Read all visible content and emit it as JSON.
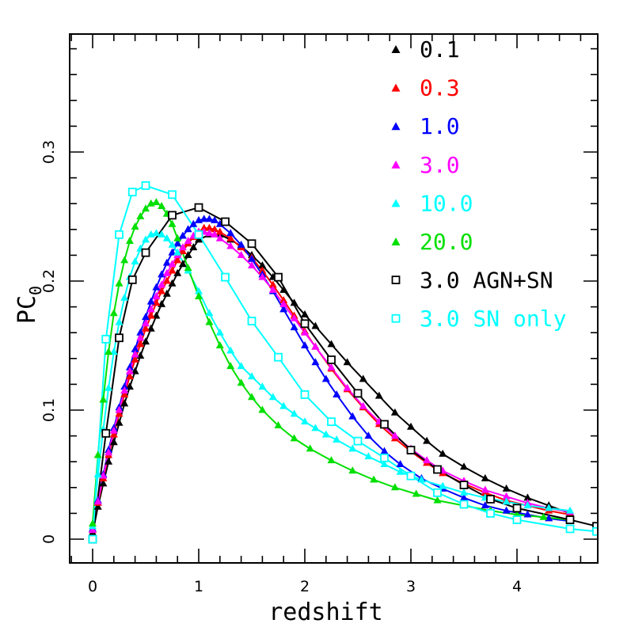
{
  "chart_data": {
    "type": "line",
    "xlabel": "redshift",
    "ylabel": "PC",
    "ylabel_sub": "0",
    "xlim": [
      -0.2,
      4.75
    ],
    "ylim": [
      -0.018,
      0.39
    ],
    "x_ticks": [
      0,
      1,
      2,
      3,
      4
    ],
    "x_tick_labels": [
      "0",
      "1",
      "2",
      "3",
      "4"
    ],
    "y_ticks": [
      0,
      0.1,
      0.2,
      0.3
    ],
    "y_tick_labels": [
      "0",
      "0.1",
      "0.2",
      "0.3"
    ],
    "x_minor_step": 0.2,
    "y_minor_step": 0.02,
    "grid": false,
    "legend_position": "top-right",
    "series": [
      {
        "name": "0.1",
        "color": "#000000",
        "marker": "triangle",
        "x": [
          0,
          0.05,
          0.1,
          0.15,
          0.2,
          0.25,
          0.3,
          0.35,
          0.4,
          0.45,
          0.5,
          0.55,
          0.6,
          0.65,
          0.7,
          0.75,
          0.8,
          0.85,
          0.9,
          0.95,
          1.0,
          1.1,
          1.2,
          1.3,
          1.4,
          1.5,
          1.6,
          1.7,
          1.8,
          1.9,
          2.0,
          2.1,
          2.25,
          2.4,
          2.55,
          2.7,
          2.85,
          3.0,
          3.15,
          3.3,
          3.5,
          3.7,
          3.9,
          4.1,
          4.3,
          4.5
        ],
        "y": [
          0.005,
          0.025,
          0.043,
          0.06,
          0.075,
          0.09,
          0.105,
          0.118,
          0.13,
          0.142,
          0.153,
          0.163,
          0.173,
          0.182,
          0.19,
          0.198,
          0.206,
          0.213,
          0.22,
          0.226,
          0.232,
          0.236,
          0.236,
          0.232,
          0.227,
          0.22,
          0.212,
          0.203,
          0.193,
          0.183,
          0.174,
          0.165,
          0.151,
          0.137,
          0.124,
          0.111,
          0.098,
          0.087,
          0.076,
          0.066,
          0.056,
          0.047,
          0.039,
          0.032,
          0.026,
          0.02
        ]
      },
      {
        "name": "0.3",
        "color": "#ff0000",
        "marker": "triangle",
        "x": [
          0,
          0.05,
          0.1,
          0.15,
          0.2,
          0.25,
          0.3,
          0.35,
          0.4,
          0.45,
          0.5,
          0.55,
          0.6,
          0.65,
          0.7,
          0.75,
          0.8,
          0.85,
          0.9,
          0.95,
          1.0,
          1.05,
          1.1,
          1.15,
          1.2,
          1.3,
          1.4,
          1.5,
          1.6,
          1.7,
          1.8,
          1.9,
          2.0,
          2.1,
          2.25,
          2.4,
          2.55,
          2.7,
          2.85,
          3.0,
          3.15,
          3.3,
          3.5,
          3.7,
          3.9,
          4.1,
          4.3,
          4.5
        ],
        "y": [
          0.007,
          0.028,
          0.047,
          0.065,
          0.081,
          0.097,
          0.112,
          0.126,
          0.139,
          0.151,
          0.163,
          0.173,
          0.183,
          0.192,
          0.2,
          0.208,
          0.216,
          0.223,
          0.229,
          0.234,
          0.238,
          0.241,
          0.241,
          0.24,
          0.238,
          0.233,
          0.226,
          0.218,
          0.208,
          0.197,
          0.185,
          0.173,
          0.161,
          0.149,
          0.132,
          0.116,
          0.102,
          0.089,
          0.078,
          0.068,
          0.059,
          0.051,
          0.043,
          0.036,
          0.03,
          0.026,
          0.022,
          0.019
        ]
      },
      {
        "name": "1.0",
        "color": "#0000ff",
        "marker": "triangle",
        "x": [
          0,
          0.05,
          0.1,
          0.15,
          0.2,
          0.25,
          0.3,
          0.35,
          0.4,
          0.45,
          0.5,
          0.55,
          0.6,
          0.65,
          0.7,
          0.75,
          0.8,
          0.85,
          0.9,
          0.95,
          1.0,
          1.05,
          1.1,
          1.15,
          1.2,
          1.3,
          1.4,
          1.5,
          1.6,
          1.7,
          1.8,
          1.9,
          2.0,
          2.1,
          2.2,
          2.3,
          2.45,
          2.6,
          2.75,
          2.9,
          3.1,
          3.3,
          3.5,
          3.7,
          3.9,
          4.1,
          4.3,
          4.5
        ],
        "y": [
          0.008,
          0.03,
          0.05,
          0.069,
          0.086,
          0.102,
          0.118,
          0.133,
          0.147,
          0.16,
          0.172,
          0.184,
          0.195,
          0.205,
          0.214,
          0.222,
          0.229,
          0.235,
          0.24,
          0.244,
          0.247,
          0.248,
          0.248,
          0.247,
          0.244,
          0.237,
          0.228,
          0.217,
          0.205,
          0.192,
          0.178,
          0.164,
          0.15,
          0.137,
          0.124,
          0.112,
          0.095,
          0.08,
          0.068,
          0.058,
          0.047,
          0.039,
          0.032,
          0.026,
          0.022,
          0.019,
          0.016,
          0.014
        ]
      },
      {
        "name": "3.0",
        "color": "#ff00ff",
        "marker": "triangle",
        "x": [
          0,
          0.05,
          0.1,
          0.15,
          0.2,
          0.25,
          0.3,
          0.35,
          0.4,
          0.45,
          0.5,
          0.55,
          0.6,
          0.65,
          0.7,
          0.75,
          0.8,
          0.85,
          0.9,
          0.95,
          1.0,
          1.05,
          1.1,
          1.15,
          1.2,
          1.3,
          1.4,
          1.5,
          1.6,
          1.7,
          1.8,
          1.9,
          2.0,
          2.1,
          2.25,
          2.4,
          2.55,
          2.7,
          2.85,
          3.0,
          3.15,
          3.3,
          3.5,
          3.7,
          3.9,
          4.1,
          4.3,
          4.5
        ],
        "y": [
          0.007,
          0.029,
          0.049,
          0.067,
          0.084,
          0.1,
          0.115,
          0.13,
          0.143,
          0.156,
          0.167,
          0.178,
          0.188,
          0.197,
          0.206,
          0.213,
          0.22,
          0.226,
          0.231,
          0.235,
          0.238,
          0.238,
          0.237,
          0.236,
          0.233,
          0.227,
          0.22,
          0.212,
          0.203,
          0.193,
          0.182,
          0.171,
          0.16,
          0.149,
          0.133,
          0.117,
          0.103,
          0.091,
          0.08,
          0.07,
          0.061,
          0.053,
          0.045,
          0.038,
          0.033,
          0.028,
          0.024,
          0.021
        ]
      },
      {
        "name": "10.0",
        "color": "#00ffff",
        "marker": "triangle",
        "x": [
          0,
          0.05,
          0.1,
          0.15,
          0.2,
          0.25,
          0.3,
          0.35,
          0.4,
          0.45,
          0.5,
          0.55,
          0.6,
          0.65,
          0.7,
          0.75,
          0.8,
          0.9,
          1.0,
          1.1,
          1.2,
          1.3,
          1.4,
          1.5,
          1.6,
          1.7,
          1.8,
          1.9,
          2.0,
          2.1,
          2.2,
          2.3,
          2.45,
          2.6,
          2.75,
          2.9,
          3.1,
          3.3,
          3.5,
          3.7,
          3.9,
          4.1,
          4.3,
          4.5
        ],
        "y": [
          0.01,
          0.05,
          0.085,
          0.117,
          0.145,
          0.168,
          0.187,
          0.203,
          0.215,
          0.225,
          0.232,
          0.236,
          0.237,
          0.236,
          0.233,
          0.228,
          0.222,
          0.208,
          0.192,
          0.175,
          0.16,
          0.146,
          0.134,
          0.126,
          0.118,
          0.11,
          0.103,
          0.097,
          0.091,
          0.086,
          0.081,
          0.077,
          0.07,
          0.064,
          0.058,
          0.052,
          0.046,
          0.041,
          0.036,
          0.032,
          0.029,
          0.026,
          0.024,
          0.022
        ]
      },
      {
        "name": "20.0",
        "color": "#00e000",
        "marker": "triangle",
        "x": [
          0,
          0.05,
          0.1,
          0.15,
          0.2,
          0.25,
          0.3,
          0.35,
          0.4,
          0.45,
          0.5,
          0.55,
          0.6,
          0.65,
          0.7,
          0.75,
          0.8,
          0.9,
          1.0,
          1.1,
          1.2,
          1.3,
          1.4,
          1.5,
          1.6,
          1.75,
          1.9,
          2.05,
          2.25,
          2.45,
          2.65,
          2.85,
          3.05,
          3.25,
          3.5,
          3.75,
          4.0,
          4.25,
          4.5
        ],
        "y": [
          0.012,
          0.065,
          0.108,
          0.145,
          0.175,
          0.198,
          0.216,
          0.231,
          0.242,
          0.25,
          0.256,
          0.26,
          0.261,
          0.258,
          0.252,
          0.244,
          0.233,
          0.21,
          0.188,
          0.168,
          0.15,
          0.134,
          0.121,
          0.11,
          0.1,
          0.088,
          0.078,
          0.07,
          0.061,
          0.053,
          0.046,
          0.04,
          0.035,
          0.03,
          0.026,
          0.022,
          0.019,
          0.017,
          0.015
        ]
      },
      {
        "name": "3.0 AGN+SN",
        "color": "#000000",
        "marker": "open-square",
        "x": [
          0,
          0.125,
          0.25,
          0.375,
          0.5,
          0.75,
          1.0,
          1.25,
          1.5,
          1.75,
          2.0,
          2.25,
          2.5,
          2.75,
          3.0,
          3.25,
          3.5,
          3.75,
          4.0,
          4.5,
          4.75
        ],
        "y": [
          0,
          0.082,
          0.156,
          0.201,
          0.222,
          0.251,
          0.257,
          0.246,
          0.229,
          0.203,
          0.167,
          0.139,
          0.113,
          0.089,
          0.069,
          0.054,
          0.042,
          0.031,
          0.024,
          0.015,
          0.01
        ]
      },
      {
        "name": "3.0 SN only",
        "color": "#00ffff",
        "marker": "open-square",
        "x": [
          0,
          0.125,
          0.25,
          0.375,
          0.5,
          0.75,
          1.0,
          1.25,
          1.5,
          1.75,
          2.0,
          2.25,
          2.5,
          2.75,
          3.0,
          3.25,
          3.5,
          3.75,
          4.0,
          4.5,
          4.75
        ],
        "y": [
          0,
          0.155,
          0.236,
          0.269,
          0.274,
          0.267,
          0.236,
          0.203,
          0.169,
          0.141,
          0.112,
          0.091,
          0.076,
          0.063,
          0.049,
          0.036,
          0.027,
          0.02,
          0.015,
          0.008,
          0.006
        ]
      }
    ]
  }
}
